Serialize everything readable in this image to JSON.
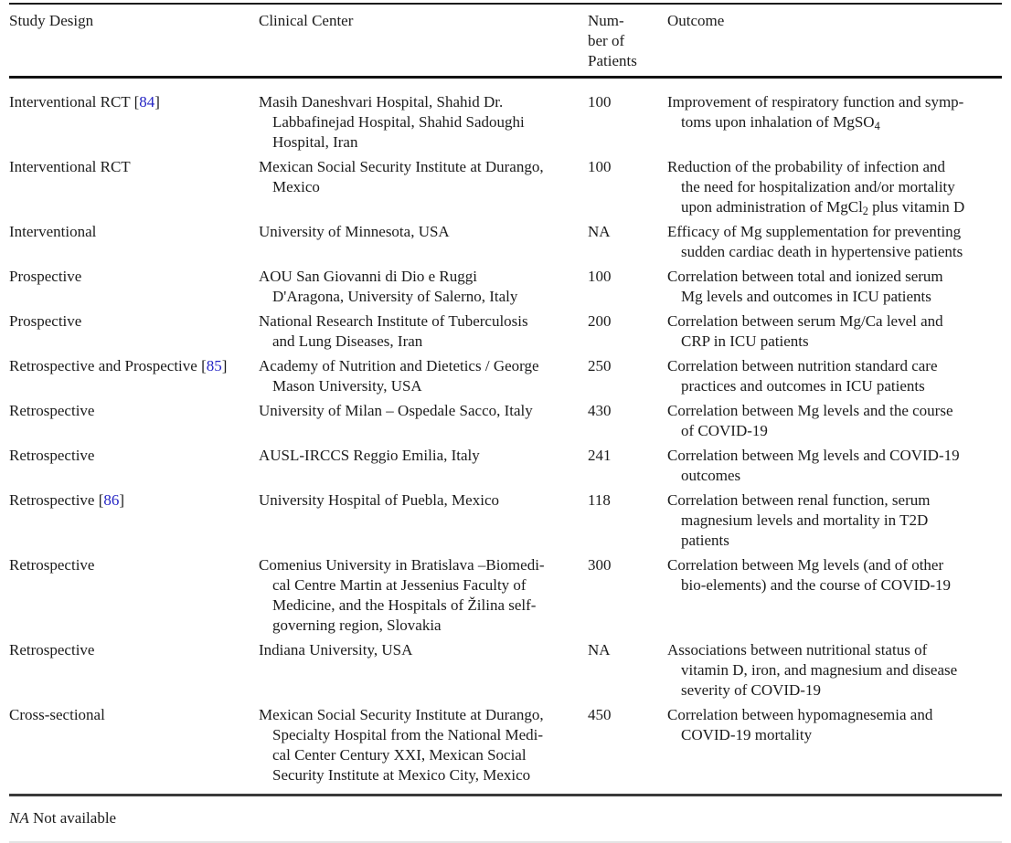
{
  "colors": {
    "text": "#1b1b1b",
    "citation_blue": "#2424c4",
    "rule_dark": "#141414",
    "rule_medium": "#3a3a3a",
    "rule_faint": "#e4e4e4",
    "background": "#ffffff"
  },
  "table": {
    "headers": {
      "study_design": "Study Design",
      "clinical_center": "Clinical Center",
      "num_patients": [
        "Num-",
        "ber of",
        "Patients"
      ],
      "outcome": "Outcome"
    },
    "rows": [
      {
        "design": "Interventional RCT",
        "ref_open": " [",
        "ref": "84",
        "ref_close": "]",
        "center": [
          "Masih Daneshvari Hospital, Shahid Dr.",
          "Labbafinejad Hospital, Shahid Sadoughi",
          "Hospital, Iran"
        ],
        "n": "100",
        "outcome": [
          "Improvement of respiratory function and symp-",
          "toms upon inhalation of MgSO"
        ],
        "outcome_sub": "4"
      },
      {
        "design": "Interventional RCT",
        "center": [
          "Mexican Social Security Institute at Durango,",
          "Mexico"
        ],
        "n": "100",
        "outcome": [
          "Reduction of the probability of infection and",
          "the need for hospitalization and/or mortality",
          "upon administration of MgCl"
        ],
        "outcome_sub": "2",
        "outcome_post": " plus vitamin D"
      },
      {
        "design": "Interventional",
        "center": [
          "University of Minnesota, USA"
        ],
        "n": "NA",
        "outcome": [
          "Efficacy of Mg supplementation for preventing",
          "sudden cardiac death in hypertensive patients"
        ]
      },
      {
        "design": "Prospective",
        "center": [
          "AOU San Giovanni di Dio e Ruggi",
          "D'Aragona, University of Salerno, Italy"
        ],
        "n": "100",
        "outcome": [
          "Correlation between total and ionized serum",
          "Mg levels and outcomes in ICU patients"
        ]
      },
      {
        "design": "Prospective",
        "center": [
          "National Research Institute of Tuberculosis",
          "and Lung Diseases, Iran"
        ],
        "n": "200",
        "outcome": [
          "Correlation between serum Mg/Ca level and",
          "CRP in ICU patients"
        ]
      },
      {
        "design": "Retrospective and Prospective",
        "ref_open": " [",
        "ref": "85",
        "ref_close": "]",
        "center": [
          "Academy of Nutrition and Dietetics / George",
          "Mason University, USA"
        ],
        "n": "250",
        "outcome": [
          "Correlation between nutrition standard care",
          "practices and outcomes in ICU patients"
        ]
      },
      {
        "design": "Retrospective",
        "center": [
          "University of Milan – Ospedale Sacco, Italy"
        ],
        "n": "430",
        "outcome": [
          "Correlation between Mg levels and the course",
          "of COVID-19"
        ]
      },
      {
        "design": "Retrospective",
        "center": [
          "AUSL-IRCCS Reggio Emilia, Italy"
        ],
        "n": "241",
        "outcome": [
          "Correlation between Mg levels and COVID-19",
          "outcomes"
        ]
      },
      {
        "design": "Retrospective",
        "ref_open": " [",
        "ref": "86",
        "ref_close": "]",
        "center": [
          "University Hospital of Puebla, Mexico"
        ],
        "n": "118",
        "outcome": [
          "Correlation between renal function, serum",
          "magnesium levels and mortality in T2D",
          "patients"
        ]
      },
      {
        "design": "Retrospective",
        "center": [
          "Comenius University in Bratislava –Biomedi-",
          "cal Centre Martin at Jessenius Faculty of",
          "Medicine, and the Hospitals of Žilina self-",
          "governing region, Slovakia"
        ],
        "n": "300",
        "outcome": [
          "Correlation between Mg levels (and of other",
          "bio-elements) and the course of COVID-19"
        ]
      },
      {
        "design": "Retrospective",
        "center": [
          "Indiana University, USA"
        ],
        "n": "NA",
        "outcome": [
          "Associations between nutritional status of",
          "vitamin D, iron, and magnesium and disease",
          "severity of COVID-19"
        ]
      },
      {
        "design": "Cross-sectional",
        "center": [
          "Mexican Social Security Institute at Durango,",
          "Specialty Hospital from the National Medi-",
          "cal Center Century XXI, Mexican Social",
          "Security Institute at Mexico City, Mexico"
        ],
        "n": "450",
        "outcome": [
          "Correlation between hypomagnesemia and",
          "COVID-19 mortality"
        ]
      }
    ],
    "footnote": {
      "abbr": "NA",
      "text": " Not available"
    }
  }
}
